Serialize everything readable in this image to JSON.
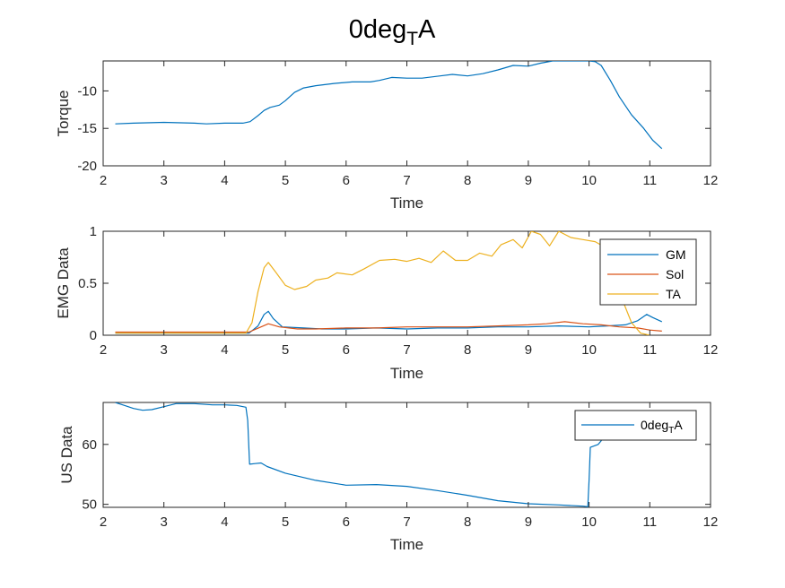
{
  "figure": {
    "title": {
      "main": "0deg",
      "subscript": "T",
      "suffix": "A"
    }
  },
  "chart_data": [
    {
      "type": "line",
      "xlabel": "Time",
      "ylabel": "Torque",
      "xlim": [
        2,
        12
      ],
      "ylim": [
        -20,
        -6
      ],
      "xticks": [
        2,
        3,
        4,
        5,
        6,
        7,
        8,
        9,
        10,
        11,
        12
      ],
      "yticks": [
        -20,
        -15,
        -10
      ],
      "grid": false,
      "series": [
        {
          "color": "#0072BD",
          "points": [
            [
              2.2,
              -14.4
            ],
            [
              2.5,
              -14.3
            ],
            [
              3.0,
              -14.2
            ],
            [
              3.5,
              -14.3
            ],
            [
              3.7,
              -14.4
            ],
            [
              4.0,
              -14.3
            ],
            [
              4.3,
              -14.3
            ],
            [
              4.42,
              -14.1
            ],
            [
              4.55,
              -13.3
            ],
            [
              4.65,
              -12.6
            ],
            [
              4.75,
              -12.2
            ],
            [
              4.9,
              -11.9
            ],
            [
              5.0,
              -11.3
            ],
            [
              5.15,
              -10.2
            ],
            [
              5.3,
              -9.6
            ],
            [
              5.5,
              -9.3
            ],
            [
              5.8,
              -9.0
            ],
            [
              6.1,
              -8.8
            ],
            [
              6.4,
              -8.8
            ],
            [
              6.55,
              -8.6
            ],
            [
              6.75,
              -8.2
            ],
            [
              7.0,
              -8.3
            ],
            [
              7.25,
              -8.3
            ],
            [
              7.55,
              -8.0
            ],
            [
              7.75,
              -7.8
            ],
            [
              8.0,
              -8.0
            ],
            [
              8.25,
              -7.7
            ],
            [
              8.5,
              -7.2
            ],
            [
              8.75,
              -6.6
            ],
            [
              9.0,
              -6.7
            ],
            [
              9.2,
              -6.3
            ],
            [
              9.4,
              -6.0
            ],
            [
              9.7,
              -6.0
            ],
            [
              10.0,
              -6.0
            ],
            [
              10.1,
              -6.1
            ],
            [
              10.2,
              -6.6
            ],
            [
              10.35,
              -8.6
            ],
            [
              10.5,
              -10.8
            ],
            [
              10.7,
              -13.2
            ],
            [
              10.9,
              -15.0
            ],
            [
              11.05,
              -16.6
            ],
            [
              11.2,
              -17.7
            ]
          ]
        }
      ]
    },
    {
      "type": "line",
      "xlabel": "Time",
      "ylabel": "EMG Data",
      "xlim": [
        2,
        12
      ],
      "ylim": [
        0,
        1
      ],
      "xticks": [
        2,
        3,
        4,
        5,
        6,
        7,
        8,
        9,
        10,
        11,
        12
      ],
      "yticks": [
        0,
        0.5,
        1
      ],
      "ytick_labels": [
        "0",
        "0.5",
        "1"
      ],
      "grid": false,
      "legend": "top-right",
      "series": [
        {
          "name": "GM",
          "color": "#0072BD",
          "points": [
            [
              2.2,
              0.02
            ],
            [
              3.0,
              0.02
            ],
            [
              4.0,
              0.02
            ],
            [
              4.4,
              0.02
            ],
            [
              4.55,
              0.09
            ],
            [
              4.65,
              0.2
            ],
            [
              4.72,
              0.23
            ],
            [
              4.8,
              0.16
            ],
            [
              4.95,
              0.08
            ],
            [
              5.3,
              0.07
            ],
            [
              5.6,
              0.06
            ],
            [
              6.0,
              0.06
            ],
            [
              6.5,
              0.07
            ],
            [
              7.0,
              0.06
            ],
            [
              7.5,
              0.07
            ],
            [
              8.0,
              0.07
            ],
            [
              8.5,
              0.08
            ],
            [
              9.0,
              0.08
            ],
            [
              9.5,
              0.09
            ],
            [
              10.0,
              0.08
            ],
            [
              10.3,
              0.09
            ],
            [
              10.6,
              0.1
            ],
            [
              10.8,
              0.14
            ],
            [
              10.95,
              0.2
            ],
            [
              11.05,
              0.17
            ],
            [
              11.2,
              0.13
            ]
          ]
        },
        {
          "name": "Sol",
          "color": "#D95319",
          "points": [
            [
              2.2,
              0.03
            ],
            [
              3.0,
              0.03
            ],
            [
              4.0,
              0.03
            ],
            [
              4.4,
              0.03
            ],
            [
              4.6,
              0.08
            ],
            [
              4.72,
              0.11
            ],
            [
              4.9,
              0.08
            ],
            [
              5.2,
              0.06
            ],
            [
              5.5,
              0.06
            ],
            [
              6.0,
              0.07
            ],
            [
              6.5,
              0.07
            ],
            [
              7.0,
              0.08
            ],
            [
              7.5,
              0.08
            ],
            [
              8.0,
              0.08
            ],
            [
              8.5,
              0.09
            ],
            [
              9.0,
              0.1
            ],
            [
              9.3,
              0.11
            ],
            [
              9.6,
              0.13
            ],
            [
              9.9,
              0.11
            ],
            [
              10.2,
              0.1
            ],
            [
              10.5,
              0.08
            ],
            [
              10.8,
              0.07
            ],
            [
              11.0,
              0.05
            ],
            [
              11.2,
              0.04
            ]
          ]
        },
        {
          "name": "TA",
          "color": "#EDB120",
          "points": [
            [
              2.2,
              0.02
            ],
            [
              3.0,
              0.02
            ],
            [
              4.0,
              0.02
            ],
            [
              4.35,
              0.02
            ],
            [
              4.45,
              0.12
            ],
            [
              4.55,
              0.42
            ],
            [
              4.65,
              0.65
            ],
            [
              4.72,
              0.7
            ],
            [
              4.85,
              0.6
            ],
            [
              5.0,
              0.48
            ],
            [
              5.15,
              0.44
            ],
            [
              5.35,
              0.47
            ],
            [
              5.5,
              0.53
            ],
            [
              5.7,
              0.55
            ],
            [
              5.85,
              0.6
            ],
            [
              6.1,
              0.58
            ],
            [
              6.3,
              0.64
            ],
            [
              6.55,
              0.72
            ],
            [
              6.8,
              0.73
            ],
            [
              7.0,
              0.71
            ],
            [
              7.2,
              0.74
            ],
            [
              7.4,
              0.7
            ],
            [
              7.6,
              0.81
            ],
            [
              7.8,
              0.72
            ],
            [
              8.0,
              0.72
            ],
            [
              8.2,
              0.79
            ],
            [
              8.4,
              0.76
            ],
            [
              8.55,
              0.87
            ],
            [
              8.75,
              0.92
            ],
            [
              8.9,
              0.84
            ],
            [
              9.05,
              1.0
            ],
            [
              9.2,
              0.97
            ],
            [
              9.35,
              0.86
            ],
            [
              9.5,
              1.0
            ],
            [
              9.7,
              0.94
            ],
            [
              9.9,
              0.92
            ],
            [
              10.1,
              0.9
            ],
            [
              10.25,
              0.85
            ],
            [
              10.4,
              0.62
            ],
            [
              10.55,
              0.34
            ],
            [
              10.7,
              0.12
            ],
            [
              10.85,
              0.02
            ],
            [
              11.0,
              0.0
            ]
          ]
        }
      ]
    },
    {
      "type": "line",
      "xlabel": "Time",
      "ylabel": "US Data",
      "xlim": [
        2,
        12
      ],
      "ylim": [
        49.5,
        67
      ],
      "xticks": [
        2,
        3,
        4,
        5,
        6,
        7,
        8,
        9,
        10,
        11,
        12
      ],
      "yticks": [
        50,
        60
      ],
      "grid": false,
      "legend": "top-right",
      "series": [
        {
          "name": "0degTA",
          "color": "#0072BD",
          "points": [
            [
              2.2,
              67.0
            ],
            [
              2.35,
              66.5
            ],
            [
              2.5,
              66.0
            ],
            [
              2.65,
              65.7
            ],
            [
              2.8,
              65.8
            ],
            [
              3.0,
              66.3
            ],
            [
              3.2,
              66.8
            ],
            [
              3.5,
              66.8
            ],
            [
              3.8,
              66.6
            ],
            [
              4.0,
              66.6
            ],
            [
              4.2,
              66.5
            ],
            [
              4.35,
              66.2
            ],
            [
              4.38,
              64.0
            ],
            [
              4.41,
              56.7
            ],
            [
              4.5,
              56.8
            ],
            [
              4.6,
              56.9
            ],
            [
              4.7,
              56.3
            ],
            [
              5.0,
              55.2
            ],
            [
              5.5,
              54.0
            ],
            [
              6.0,
              53.2
            ],
            [
              6.5,
              53.3
            ],
            [
              7.0,
              53.0
            ],
            [
              7.5,
              52.3
            ],
            [
              8.0,
              51.5
            ],
            [
              8.5,
              50.6
            ],
            [
              9.0,
              50.1
            ],
            [
              9.5,
              49.9
            ],
            [
              9.9,
              49.7
            ],
            [
              9.98,
              49.6
            ],
            [
              10.0,
              54.0
            ],
            [
              10.02,
              59.5
            ],
            [
              10.15,
              60.0
            ],
            [
              10.2,
              60.6
            ],
            [
              10.22,
              61.2
            ]
          ]
        }
      ]
    }
  ]
}
